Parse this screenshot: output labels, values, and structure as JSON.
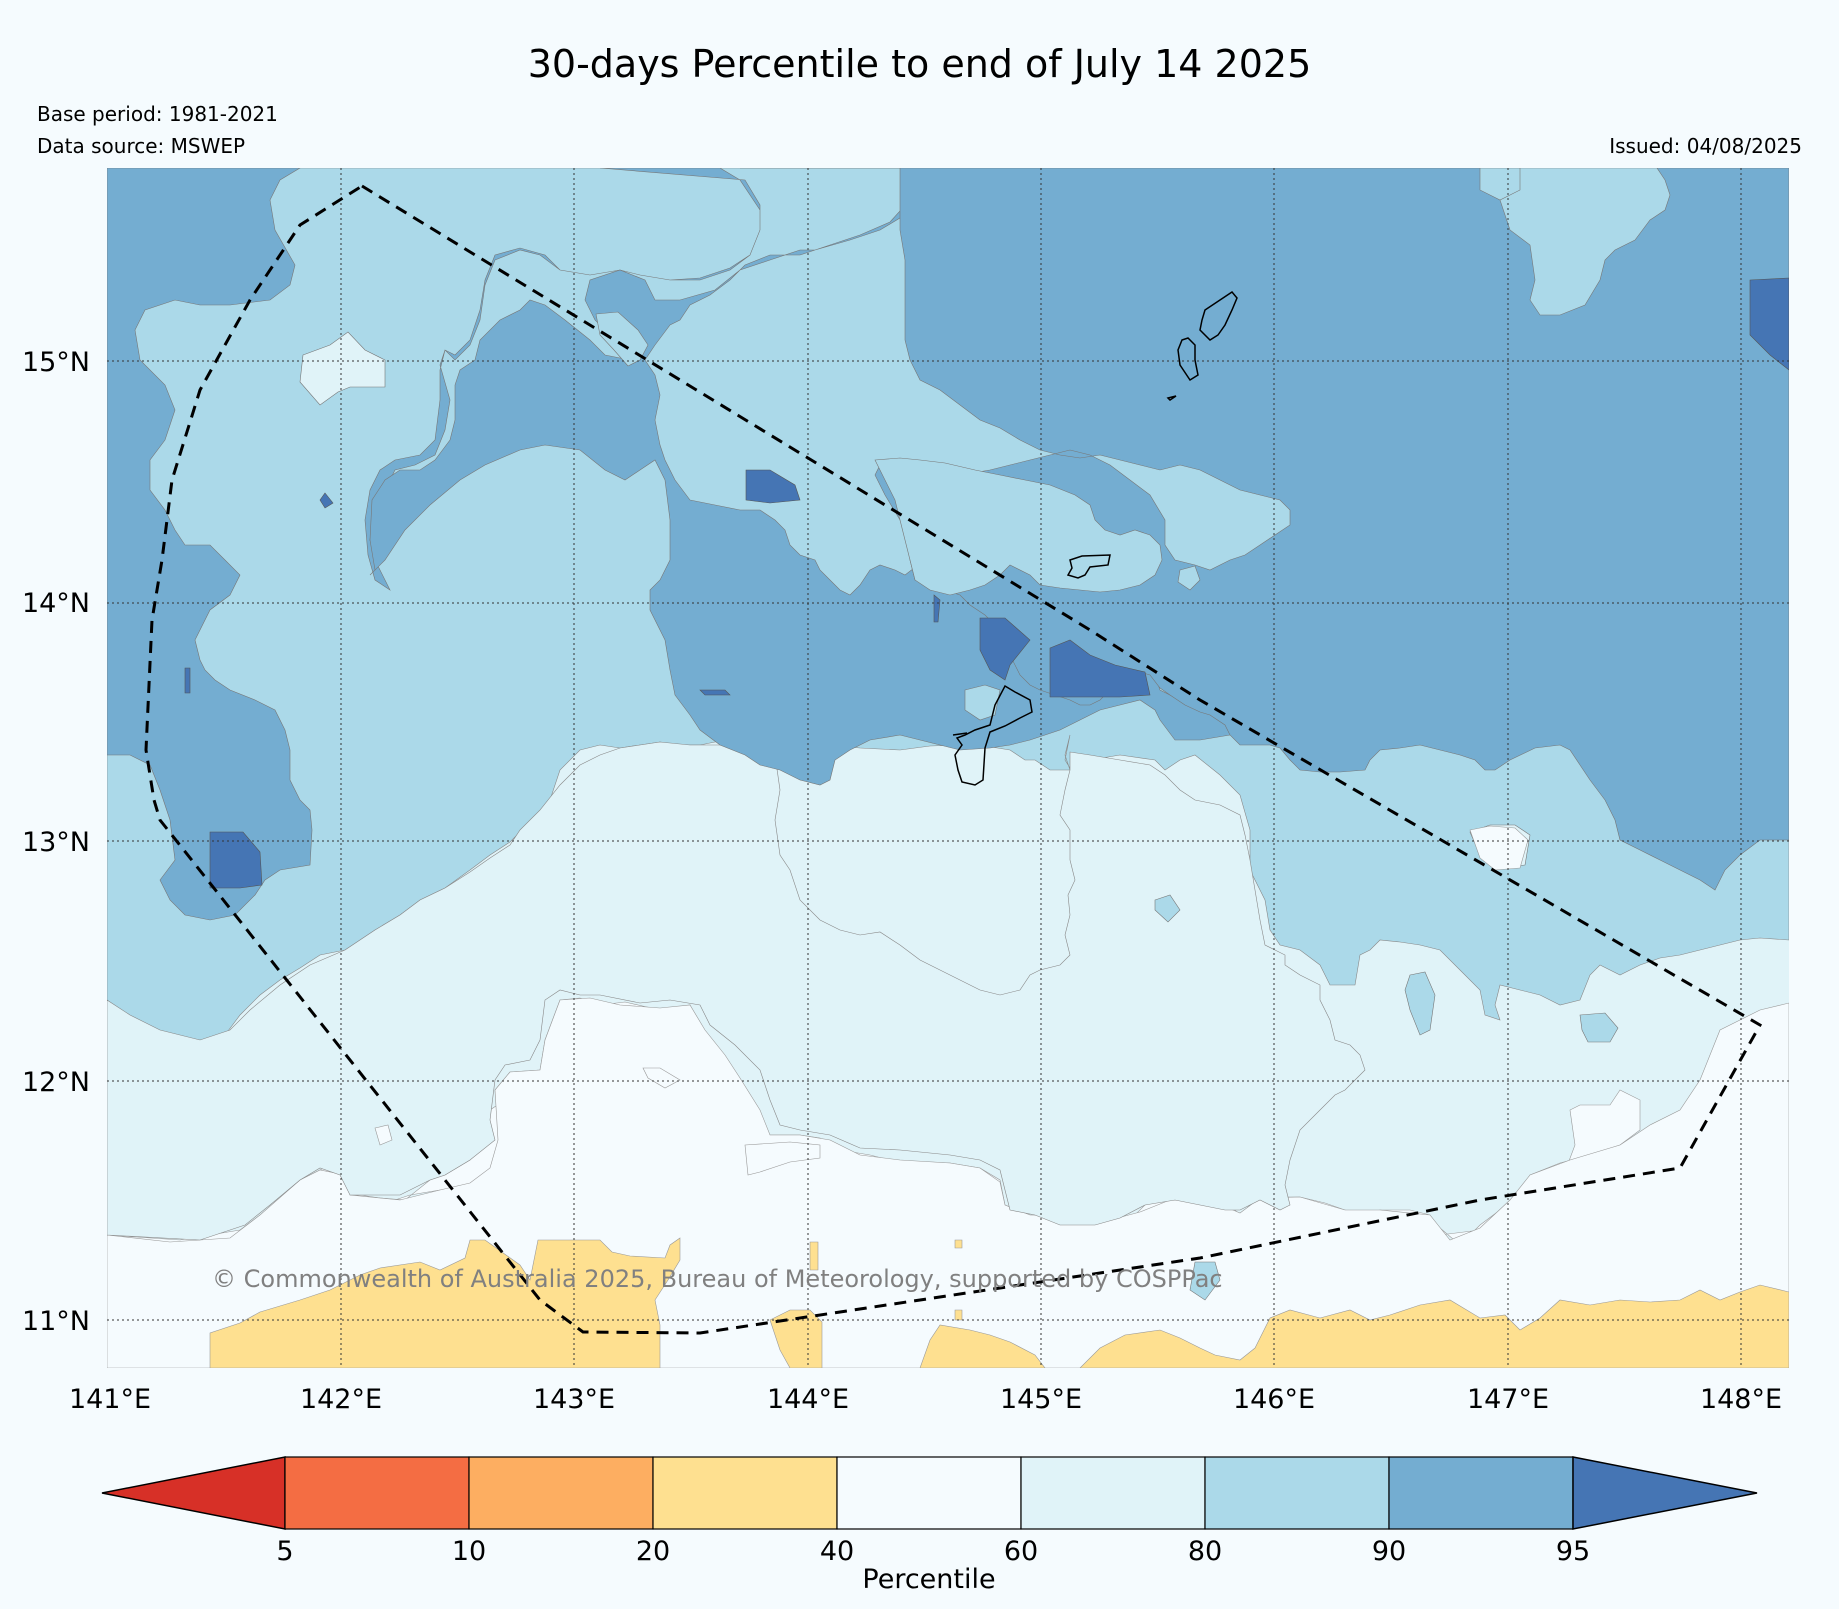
{
  "title": "30-days Percentile to end of July 14 2025",
  "base_period": "Base period: 1981-2021",
  "data_source": "Data source: MSWEP",
  "issued": "Issued: 04/08/2025",
  "copyright": "© Commonwealth of Australia 2025, Bureau of Meteorology, supported by COSPPac",
  "axes": {
    "lon_labels": [
      "141°E",
      "142°E",
      "143°E",
      "144°E",
      "145°E",
      "146°E",
      "147°E",
      "148°E"
    ],
    "lat_labels": [
      "15°N",
      "14°N",
      "13°N",
      "12°N",
      "11°N"
    ]
  },
  "colorbar": {
    "label": "Percentile",
    "ticks": [
      "5",
      "10",
      "20",
      "40",
      "60",
      "80",
      "90",
      "95"
    ],
    "colors": [
      "#d73027",
      "#f46d43",
      "#fdae61",
      "#fee090",
      "#f5fbfe",
      "#e0f3f8",
      "#abd9e9",
      "#74add1",
      "#4575b4"
    ]
  }
}
